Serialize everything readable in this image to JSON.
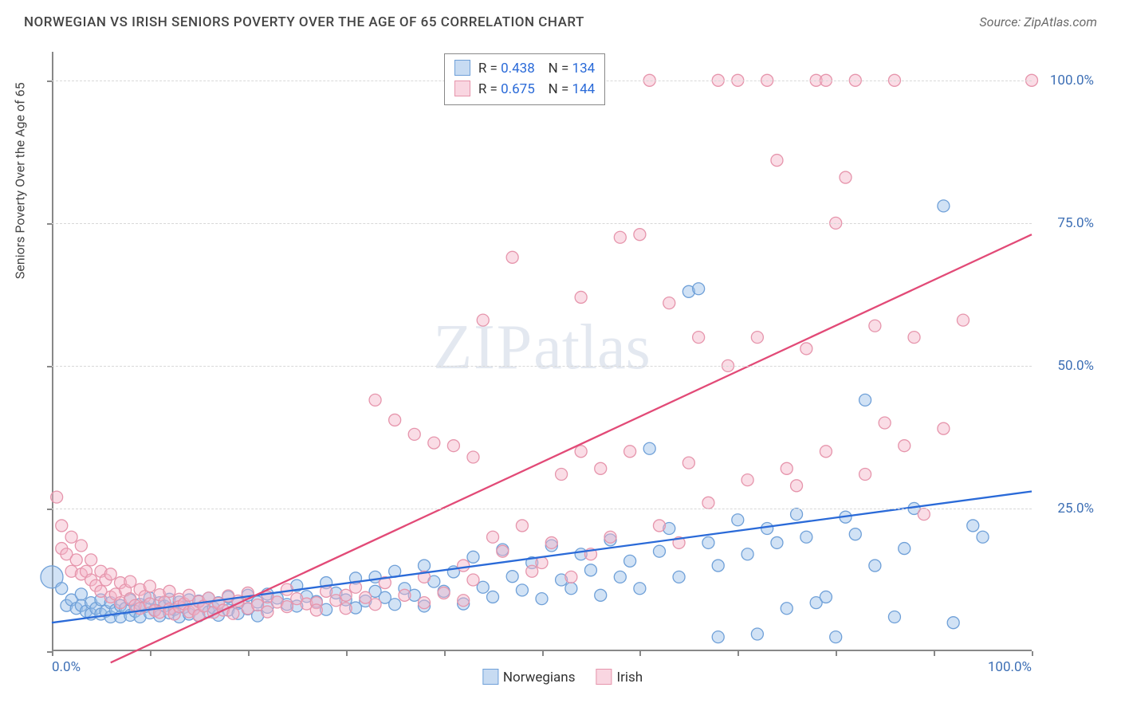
{
  "title": "NORWEGIAN VS IRISH SENIORS POVERTY OVER THE AGE OF 65 CORRELATION CHART",
  "source": "Source: ZipAtlas.com",
  "watermark_zip": "ZIP",
  "watermark_rest": "atlas",
  "chart": {
    "type": "scatter",
    "yaxis_label": "Seniors Poverty Over the Age of 65",
    "xlim": [
      0,
      100
    ],
    "ylim": [
      0,
      105
    ],
    "grid_y": [
      25,
      50,
      75,
      100
    ],
    "y_tick_labels": [
      "25.0%",
      "50.0%",
      "75.0%",
      "100.0%"
    ],
    "x_tick_labels": {
      "0": "0.0%",
      "100": "100.0%"
    },
    "x_minor_ticks": [
      0,
      10,
      20,
      30,
      40,
      50,
      60,
      70,
      80,
      90,
      100
    ],
    "y_minor_ticks": [
      0,
      25,
      50,
      75,
      100
    ],
    "background_color": "#ffffff",
    "grid_color": "#d8d8d8",
    "axis_color": "#888888",
    "tick_label_color": "#3d6fb5",
    "point_radius": 7.5,
    "point_stroke_width": 1.3,
    "line_width": 2.3,
    "series": [
      {
        "name": "Norwegians",
        "fill": "rgba(153,190,232,0.45)",
        "stroke": "#6fa0d8",
        "line_color": "#2a6ad8",
        "R": "0.438",
        "N": "134",
        "trend": {
          "x1": 0,
          "y1": 5,
          "x2": 100,
          "y2": 28
        },
        "points": [
          [
            0,
            13,
            14
          ],
          [
            1,
            11
          ],
          [
            1.5,
            8
          ],
          [
            2,
            9
          ],
          [
            2.5,
            7.5
          ],
          [
            3,
            8
          ],
          [
            3,
            10
          ],
          [
            3.5,
            7
          ],
          [
            4,
            8.5
          ],
          [
            4,
            6.5
          ],
          [
            4.5,
            7.5
          ],
          [
            5,
            9
          ],
          [
            5,
            6.5
          ],
          [
            5.5,
            7
          ],
          [
            6,
            8.5
          ],
          [
            6,
            6
          ],
          [
            6.5,
            7.2
          ],
          [
            7,
            8
          ],
          [
            7,
            6
          ],
          [
            7.5,
            7.5
          ],
          [
            8,
            9
          ],
          [
            8,
            6.3
          ],
          [
            8.5,
            7
          ],
          [
            9,
            8.2
          ],
          [
            9,
            6
          ],
          [
            9.5,
            7.8
          ],
          [
            10,
            9.3
          ],
          [
            10,
            6.7
          ],
          [
            10.5,
            7.2
          ],
          [
            11,
            8.5
          ],
          [
            11,
            6.2
          ],
          [
            11.5,
            7.9
          ],
          [
            12,
            9.1
          ],
          [
            12,
            6.7
          ],
          [
            12.5,
            7.3
          ],
          [
            13,
            8.6
          ],
          [
            13,
            6
          ],
          [
            13.5,
            7.7
          ],
          [
            14,
            9
          ],
          [
            14,
            6.5
          ],
          [
            14.5,
            7.4
          ],
          [
            15,
            8.8
          ],
          [
            15,
            6.2
          ],
          [
            15.5,
            7.9
          ],
          [
            16,
            9.3
          ],
          [
            16,
            6.9
          ],
          [
            16.5,
            7.6
          ],
          [
            17,
            8.5
          ],
          [
            17,
            6.3
          ],
          [
            18,
            9.5
          ],
          [
            18,
            7.2
          ],
          [
            19,
            8.4
          ],
          [
            19,
            6.6
          ],
          [
            20,
            9.8
          ],
          [
            20,
            7.4
          ],
          [
            21,
            8.6
          ],
          [
            21,
            6.2
          ],
          [
            22,
            10
          ],
          [
            22,
            7.7
          ],
          [
            23,
            9.3
          ],
          [
            24,
            8.2
          ],
          [
            25,
            11.5
          ],
          [
            25,
            7.9
          ],
          [
            26,
            9.6
          ],
          [
            27,
            8.7
          ],
          [
            28,
            12
          ],
          [
            28,
            7.3
          ],
          [
            29,
            10.2
          ],
          [
            30,
            9
          ],
          [
            31,
            12.8
          ],
          [
            31,
            7.6
          ],
          [
            32,
            8.8
          ],
          [
            33,
            13
          ],
          [
            33,
            10.5
          ],
          [
            34,
            9.4
          ],
          [
            35,
            14
          ],
          [
            35,
            8.2
          ],
          [
            36,
            11
          ],
          [
            37,
            9.8
          ],
          [
            38,
            15
          ],
          [
            38,
            7.9
          ],
          [
            39,
            12.2
          ],
          [
            40,
            10.5
          ],
          [
            41,
            13.9
          ],
          [
            42,
            8.3
          ],
          [
            43,
            16.5
          ],
          [
            44,
            11.2
          ],
          [
            45,
            9.5
          ],
          [
            46,
            17.8
          ],
          [
            47,
            13.1
          ],
          [
            48,
            10.7
          ],
          [
            49,
            15.5
          ],
          [
            50,
            9.2
          ],
          [
            51,
            18.5
          ],
          [
            52,
            12.5
          ],
          [
            53,
            11
          ],
          [
            54,
            17
          ],
          [
            55,
            14.2
          ],
          [
            56,
            9.8
          ],
          [
            57,
            19.5
          ],
          [
            58,
            13
          ],
          [
            59,
            15.8
          ],
          [
            60,
            11
          ],
          [
            61,
            35.5
          ],
          [
            62,
            17.5
          ],
          [
            63,
            21.5
          ],
          [
            64,
            13
          ],
          [
            65,
            63
          ],
          [
            66,
            63.5
          ],
          [
            67,
            19
          ],
          [
            68,
            15
          ],
          [
            68,
            2.5
          ],
          [
            70,
            23
          ],
          [
            71,
            17
          ],
          [
            72,
            3
          ],
          [
            73,
            21.5
          ],
          [
            74,
            19
          ],
          [
            75,
            7.5
          ],
          [
            76,
            24
          ],
          [
            77,
            20
          ],
          [
            78,
            8.5
          ],
          [
            79,
            9.5
          ],
          [
            80,
            2.5
          ],
          [
            81,
            23.5
          ],
          [
            82,
            20.5
          ],
          [
            83,
            44
          ],
          [
            84,
            15
          ],
          [
            86,
            6
          ],
          [
            87,
            18
          ],
          [
            88,
            25
          ],
          [
            91,
            78
          ],
          [
            92,
            5
          ],
          [
            94,
            22
          ],
          [
            95,
            20
          ]
        ]
      },
      {
        "name": "Irish",
        "fill": "rgba(244,180,200,0.45)",
        "stroke": "#e695ac",
        "line_color": "#e24a77",
        "R": "0.675",
        "N": "144",
        "trend": {
          "x1": 6,
          "y1": -2,
          "x2": 100,
          "y2": 73
        },
        "points": [
          [
            0.5,
            27
          ],
          [
            1,
            22
          ],
          [
            1,
            18
          ],
          [
            1.5,
            17
          ],
          [
            2,
            20
          ],
          [
            2,
            14
          ],
          [
            2.5,
            16
          ],
          [
            3,
            13.5
          ],
          [
            3,
            18.5
          ],
          [
            3.5,
            14
          ],
          [
            4,
            12.5
          ],
          [
            4,
            16
          ],
          [
            4.5,
            11.5
          ],
          [
            5,
            14
          ],
          [
            5,
            10.5
          ],
          [
            5.5,
            12.5
          ],
          [
            6,
            9.5
          ],
          [
            6,
            13.5
          ],
          [
            6.5,
            10
          ],
          [
            7,
            12
          ],
          [
            7,
            8.5
          ],
          [
            7.5,
            10.7
          ],
          [
            8,
            9.2
          ],
          [
            8,
            12.2
          ],
          [
            8.5,
            8
          ],
          [
            9,
            10.8
          ],
          [
            9,
            7.5
          ],
          [
            9.5,
            9.6
          ],
          [
            10,
            8.3
          ],
          [
            10,
            11.4
          ],
          [
            10.5,
            7.1
          ],
          [
            11,
            9.9
          ],
          [
            11,
            6.8
          ],
          [
            11.5,
            8.6
          ],
          [
            12,
            7.4
          ],
          [
            12,
            10.5
          ],
          [
            12.5,
            6.5
          ],
          [
            13,
            9.1
          ],
          [
            13,
            7.8
          ],
          [
            13.5,
            8.3
          ],
          [
            14,
            6.9
          ],
          [
            14,
            9.8
          ],
          [
            14.5,
            7.4
          ],
          [
            15,
            8.7
          ],
          [
            15,
            6.3
          ],
          [
            15.5,
            7.9
          ],
          [
            16,
            9.3
          ],
          [
            16.5,
            6.8
          ],
          [
            17,
            8.4
          ],
          [
            17.5,
            7.2
          ],
          [
            18,
            9.7
          ],
          [
            18.5,
            6.6
          ],
          [
            19,
            8.8
          ],
          [
            20,
            7.5
          ],
          [
            20,
            10.2
          ],
          [
            21,
            8.1
          ],
          [
            22,
            9.5
          ],
          [
            22,
            6.9
          ],
          [
            23,
            8.6
          ],
          [
            24,
            7.8
          ],
          [
            24,
            10.8
          ],
          [
            25,
            9.2
          ],
          [
            26,
            8.3
          ],
          [
            27,
            8.5
          ],
          [
            27,
            7.2
          ],
          [
            28,
            10.5
          ],
          [
            29,
            8.9
          ],
          [
            30,
            9.8
          ],
          [
            30,
            7.5
          ],
          [
            31,
            11.2
          ],
          [
            32,
            9.4
          ],
          [
            33,
            8.2
          ],
          [
            33,
            44
          ],
          [
            34,
            12
          ],
          [
            35,
            40.5
          ],
          [
            36,
            9.8
          ],
          [
            37,
            38
          ],
          [
            38,
            13
          ],
          [
            38,
            8.5
          ],
          [
            39,
            36.5
          ],
          [
            40,
            10.2
          ],
          [
            41,
            36
          ],
          [
            42,
            15
          ],
          [
            42,
            8.9
          ],
          [
            43,
            34
          ],
          [
            43,
            12.5
          ],
          [
            44,
            58
          ],
          [
            45,
            20
          ],
          [
            46,
            17.5
          ],
          [
            47,
            69
          ],
          [
            48,
            22
          ],
          [
            49,
            14
          ],
          [
            50,
            15.5
          ],
          [
            51,
            19
          ],
          [
            52,
            31
          ],
          [
            53,
            13
          ],
          [
            54,
            35
          ],
          [
            54,
            62
          ],
          [
            55,
            17
          ],
          [
            56,
            32
          ],
          [
            57,
            20
          ],
          [
            58,
            72.5
          ],
          [
            59,
            35
          ],
          [
            60,
            73
          ],
          [
            61,
            100
          ],
          [
            62,
            22
          ],
          [
            63,
            61
          ],
          [
            64,
            19
          ],
          [
            65,
            33
          ],
          [
            66,
            55
          ],
          [
            67,
            26
          ],
          [
            68,
            100
          ],
          [
            69,
            50
          ],
          [
            70,
            100
          ],
          [
            71,
            30
          ],
          [
            72,
            55
          ],
          [
            73,
            100
          ],
          [
            74,
            86
          ],
          [
            75,
            32
          ],
          [
            76,
            29
          ],
          [
            77,
            53
          ],
          [
            78,
            100
          ],
          [
            79,
            35
          ],
          [
            79,
            100
          ],
          [
            80,
            75
          ],
          [
            81,
            83
          ],
          [
            82,
            100
          ],
          [
            83,
            31
          ],
          [
            84,
            57
          ],
          [
            85,
            40
          ],
          [
            86,
            100
          ],
          [
            87,
            36
          ],
          [
            88,
            55
          ],
          [
            89,
            24
          ],
          [
            91,
            39
          ],
          [
            93,
            58
          ],
          [
            100,
            100
          ]
        ]
      }
    ]
  },
  "legend": {
    "series1_label": "Norwegians",
    "series2_label": "Irish",
    "box_swatch_blue_fill": "rgba(153,190,232,0.55)",
    "box_swatch_blue_stroke": "#6fa0d8",
    "box_swatch_pink_fill": "rgba(244,180,200,0.55)",
    "box_swatch_pink_stroke": "#e695ac"
  },
  "corr": {
    "line1_R_label": "R =",
    "line1_R": "0.438",
    "line1_N_label": "N =",
    "line1_N": "134",
    "line2_R_label": "R =",
    "line2_R": "0.675",
    "line2_N_label": "N =",
    "line2_N": "144"
  }
}
